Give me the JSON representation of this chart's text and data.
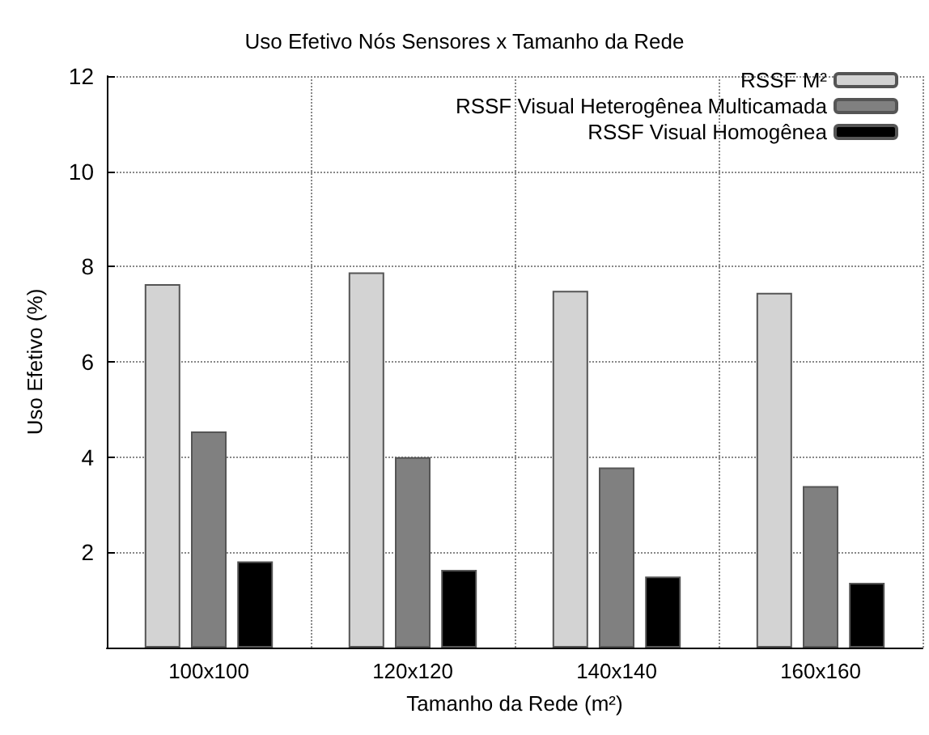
{
  "chart_data": {
    "type": "bar",
    "title": "Uso Efetivo Nós Sensores x Tamanho da Rede",
    "xlabel": "Tamanho da Rede (m²)",
    "ylabel": "Uso Efetivo (%)",
    "categories": [
      "100x100",
      "120x120",
      "140x140",
      "160x160"
    ],
    "series": [
      {
        "name": "RSSF M²",
        "color": "#d3d3d3",
        "values": [
          7.63,
          7.88,
          7.49,
          7.45
        ]
      },
      {
        "name": "RSSF Visual Heterogênea Multicamada",
        "color": "#808080",
        "values": [
          4.54,
          4.0,
          3.78,
          3.39
        ]
      },
      {
        "name": "RSSF Visual Homogênea",
        "color": "#000000",
        "values": [
          1.81,
          1.63,
          1.49,
          1.36
        ]
      }
    ],
    "ylim": [
      0,
      12
    ],
    "yticks": [
      2,
      4,
      6,
      8,
      10,
      12
    ],
    "grid": true,
    "legend": "top right"
  }
}
